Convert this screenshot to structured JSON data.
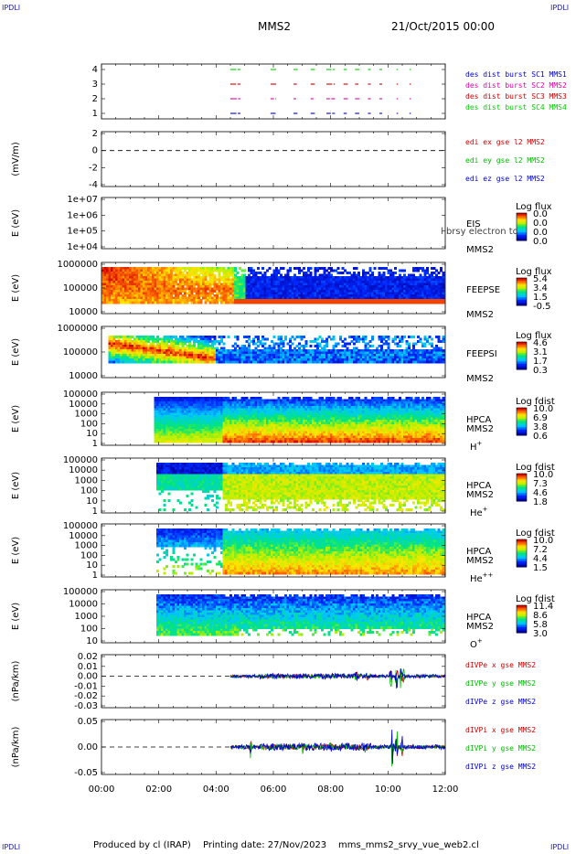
{
  "corner_logo": "IPDLI",
  "header": {
    "spacecraft": "MMS2",
    "date": "21/Oct/2015 00:00"
  },
  "footer": {
    "produced_by": "Produced by cl (IRAP)",
    "printing_date": "Printing date: 27/Nov/2023",
    "filename": "mms_mms2_srvy_vue_web2.cl"
  },
  "x_axis": {
    "ticks": [
      "00:00",
      "02:00",
      "04:00",
      "06:00",
      "08:00",
      "10:00",
      "12:00"
    ]
  },
  "chart_data": [
    {
      "type": "scatter",
      "ylabel": "",
      "y_ticks": [
        "1",
        "2",
        "3",
        "4"
      ],
      "series": [
        {
          "name": "des dist burst SC1 MMS1",
          "color": "#0000cc",
          "y": 1
        },
        {
          "name": "des dist burst SC2 MMS2",
          "color": "#dd00aa",
          "y": 2
        },
        {
          "name": "des dist burst SC3 MMS3",
          "color": "#cc0000",
          "y": 3
        },
        {
          "name": "des dist burst SC4 MMS4",
          "color": "#00cc00",
          "y": 4
        }
      ],
      "intervals_hours": [
        [
          4.5,
          4.85
        ],
        [
          5.9,
          6.1
        ],
        [
          6.7,
          6.85
        ],
        [
          7.3,
          7.45
        ],
        [
          7.85,
          8.15
        ],
        [
          8.45,
          8.6
        ],
        [
          8.85,
          9.0
        ],
        [
          9.3,
          9.4
        ],
        [
          9.7,
          9.8
        ],
        [
          10.3,
          10.35
        ],
        [
          10.75,
          10.8
        ]
      ]
    },
    {
      "type": "line",
      "ylabel": "(mV/m)",
      "y_ticks": [
        "2",
        "0",
        "-2",
        "-4"
      ],
      "series": [
        {
          "name": "edi ex gse l2 MMS2",
          "color": "#cc0000"
        },
        {
          "name": "edi ey gse l2 MMS2",
          "color": "#00bb00"
        },
        {
          "name": "edi ez gse l2 MMS2",
          "color": "#0000cc"
        }
      ]
    },
    {
      "type": "heatmap",
      "ylabel": "E (eV)",
      "y_ticks": [
        "1e+07",
        "1e+06",
        "1e+05",
        "1e+04"
      ],
      "instrument": "EIS",
      "instrument_sub": "MMS2",
      "overlay_text": "l brsy electron to",
      "colorbar": {
        "title": "Log flux",
        "ticks": [
          "0.0",
          "0.0",
          "0.0",
          "0.0"
        ]
      }
    },
    {
      "type": "heatmap",
      "ylabel": "E (eV)",
      "y_ticks": [
        "1000000",
        "100000",
        "10000"
      ],
      "instrument": "FEEPSE",
      "instrument_sub": "MMS2",
      "colorbar": {
        "title": "Log flux",
        "ticks": [
          "5.4",
          "3.4",
          "1.5",
          "-0.5"
        ]
      }
    },
    {
      "type": "heatmap",
      "ylabel": "E (eV)",
      "y_ticks": [
        "1000000",
        "100000",
        "10000"
      ],
      "instrument": "FEEPSI",
      "instrument_sub": "MMS2",
      "colorbar": {
        "title": "Log flux",
        "ticks": [
          "4.6",
          "3.1",
          "1.7",
          "0.3"
        ]
      }
    },
    {
      "type": "heatmap",
      "ylabel": "E (eV)",
      "y_ticks": [
        "100000",
        "10000",
        "1000",
        "100",
        "10",
        "1"
      ],
      "instrument": "HPCA",
      "instrument_sub": "MMS2",
      "species": "H",
      "charge": "+",
      "colorbar": {
        "title": "Log fdist",
        "ticks": [
          "10.0",
          "6.9",
          "3.8",
          "0.6"
        ]
      }
    },
    {
      "type": "heatmap",
      "ylabel": "E (eV)",
      "y_ticks": [
        "100000",
        "10000",
        "1000",
        "100",
        "10",
        "1"
      ],
      "instrument": "HPCA",
      "instrument_sub": "MMS2",
      "species": "He",
      "charge": "+",
      "colorbar": {
        "title": "Log fdist",
        "ticks": [
          "10.0",
          "7.3",
          "4.6",
          "1.8"
        ]
      }
    },
    {
      "type": "heatmap",
      "ylabel": "E (eV)",
      "y_ticks": [
        "100000",
        "10000",
        "1000",
        "100",
        "10",
        "1"
      ],
      "instrument": "HPCA",
      "instrument_sub": "MMS2",
      "species": "He",
      "charge": "++",
      "colorbar": {
        "title": "Log fdist",
        "ticks": [
          "10.0",
          "7.2",
          "4.4",
          "1.5"
        ]
      }
    },
    {
      "type": "heatmap",
      "ylabel": "E (eV)",
      "y_ticks": [
        "100000",
        "10000",
        "1000",
        "100",
        "10"
      ],
      "instrument": "HPCA",
      "instrument_sub": "MMS2",
      "species": "O",
      "charge": "+",
      "colorbar": {
        "title": "Log fdist",
        "ticks": [
          "11.4",
          "8.6",
          "5.8",
          "3.0"
        ]
      }
    },
    {
      "type": "line",
      "ylabel": "(nPa/km)",
      "y_ticks": [
        "0.02",
        "0.01",
        "0.00",
        "-0.01",
        "-0.02",
        "-0.03"
      ],
      "series": [
        {
          "name": "dIVPe x gse MMS2",
          "color": "#cc0000"
        },
        {
          "name": "dIVPe y gse MMS2",
          "color": "#00bb00"
        },
        {
          "name": "dIVPe z gse MMS2",
          "color": "#0000cc"
        }
      ]
    },
    {
      "type": "line",
      "ylabel": "(nPa/km)",
      "y_ticks": [
        "0.05",
        "0.00",
        "-0.05"
      ],
      "series": [
        {
          "name": "dIVPi x gse MMS2",
          "color": "#cc0000"
        },
        {
          "name": "dIVPi y gse MMS2",
          "color": "#00bb00"
        },
        {
          "name": "dIVPi z gse MMS2",
          "color": "#0000cc"
        }
      ]
    }
  ]
}
